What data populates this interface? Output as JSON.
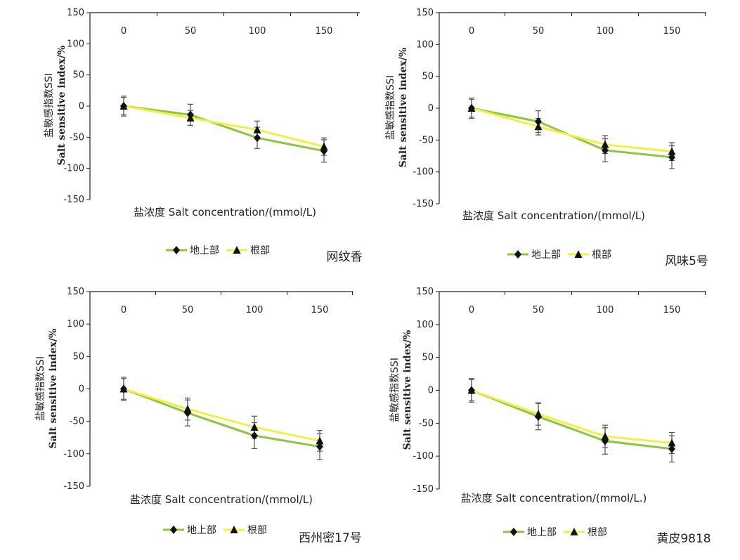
{
  "chart_data": [
    {
      "type": "line",
      "title": "网纹香",
      "xlabel": "盐浓度 Salt concentration/(mmol/L)",
      "ylabel_cn": "盐敏感指数SSI",
      "ylabel_en": "Salt sensitive index/%",
      "x": [
        0,
        50,
        100,
        150
      ],
      "ylim": [
        -150,
        150
      ],
      "yticks": [
        150,
        100,
        50,
        0,
        -50,
        -100,
        -150
      ],
      "legend_position": "bottom-center",
      "series": [
        {
          "name": "地上部",
          "color": "#8cc63f",
          "marker": "diamond",
          "values": [
            0,
            -14,
            -51,
            -72
          ],
          "errors": [
            16,
            17,
            17,
            18
          ]
        },
        {
          "name": "根部",
          "color": "#f2ee4a",
          "marker": "triangle",
          "values": [
            0,
            -19,
            -38,
            -65
          ],
          "errors": [
            14,
            12,
            14,
            14
          ]
        }
      ]
    },
    {
      "type": "line",
      "title": "风味5号",
      "xlabel": "盐浓度 Salt concentration/(mmol/L)",
      "ylabel_cn": "盐敏感指数SSI",
      "ylabel_en": "Salt sensitive index/%",
      "x": [
        0,
        50,
        100,
        150
      ],
      "ylim": [
        -150,
        150
      ],
      "yticks": [
        150,
        100,
        50,
        0,
        -50,
        -100,
        -150
      ],
      "legend_position": "bottom-center",
      "series": [
        {
          "name": "地上部",
          "color": "#8cc63f",
          "marker": "diamond",
          "values": [
            0,
            -21,
            -66,
            -77
          ],
          "errors": [
            16,
            17,
            18,
            18
          ]
        },
        {
          "name": "根部",
          "color": "#f2ee4a",
          "marker": "triangle",
          "values": [
            0,
            -29,
            -57,
            -68
          ],
          "errors": [
            14,
            13,
            14,
            14
          ]
        }
      ]
    },
    {
      "type": "line",
      "title": "西州密17号",
      "xlabel": "盐浓度 Salt concentration/(mmol/L)",
      "ylabel_cn": "盐敏感指数SSI",
      "ylabel_en": "Salt sensitive index/%",
      "x": [
        0,
        50,
        100,
        150
      ],
      "ylim": [
        -150,
        150
      ],
      "yticks": [
        150,
        100,
        50,
        0,
        -50,
        -100,
        -150
      ],
      "legend_position": "bottom-center",
      "series": [
        {
          "name": "地上部",
          "color": "#8cc63f",
          "marker": "diamond",
          "values": [
            0,
            -37,
            -72,
            -89
          ],
          "errors": [
            18,
            20,
            20,
            20
          ]
        },
        {
          "name": "根部",
          "color": "#f2ee4a",
          "marker": "triangle",
          "values": [
            0,
            -31,
            -59,
            -80
          ],
          "errors": [
            16,
            17,
            17,
            16
          ]
        }
      ]
    },
    {
      "type": "line",
      "title": "黄皮9818",
      "xlabel": "盐浓度 Salt concentration/(mmol/L.)",
      "ylabel_cn": "盐敏感指数SSI",
      "ylabel_en": "Salt sensitive index/%",
      "x": [
        0,
        50,
        100,
        150
      ],
      "ylim": [
        -150,
        150
      ],
      "yticks": [
        150,
        100,
        50,
        0,
        -50,
        -100,
        -150
      ],
      "legend_position": "bottom-center",
      "series": [
        {
          "name": "地上部",
          "color": "#8cc63f",
          "marker": "diamond",
          "values": [
            0,
            -40,
            -77,
            -89
          ],
          "errors": [
            18,
            20,
            20,
            20
          ]
        },
        {
          "name": "根部",
          "color": "#f2ee4a",
          "marker": "triangle",
          "values": [
            0,
            -36,
            -70,
            -80
          ],
          "errors": [
            16,
            17,
            17,
            16
          ]
        }
      ]
    }
  ]
}
